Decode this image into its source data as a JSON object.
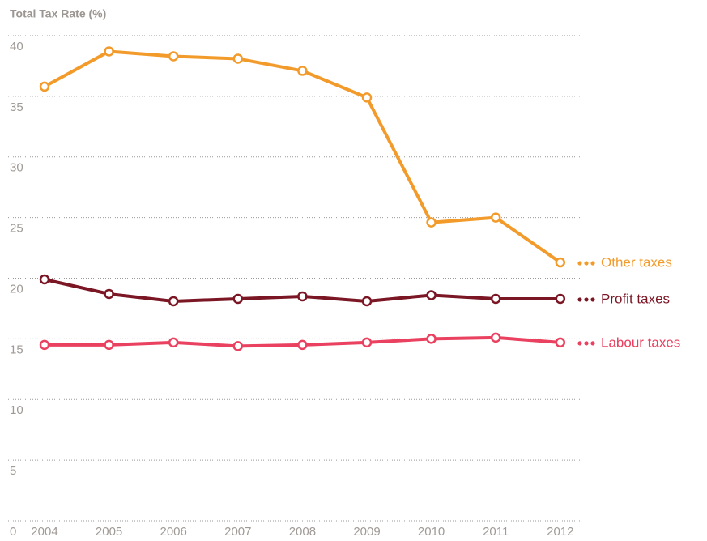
{
  "chart_data": {
    "type": "line",
    "title": "Total Tax Rate (%)",
    "categories": [
      "2004",
      "2005",
      "2006",
      "2007",
      "2008",
      "2009",
      "2010",
      "2011",
      "2012"
    ],
    "series": [
      {
        "name": "Other taxes",
        "color": "#f29b2b",
        "values": [
          35.8,
          38.7,
          38.3,
          38.1,
          37.1,
          34.9,
          24.6,
          25.0,
          21.3
        ]
      },
      {
        "name": "Profit taxes",
        "color": "#7b1624",
        "values": [
          19.9,
          18.7,
          18.1,
          18.3,
          18.5,
          18.1,
          18.6,
          18.3,
          18.3
        ]
      },
      {
        "name": "Labour taxes",
        "color": "#e9415f",
        "values": [
          14.5,
          14.5,
          14.7,
          14.4,
          14.5,
          14.7,
          15.0,
          15.1,
          14.7
        ]
      }
    ],
    "ylim": [
      0,
      40
    ],
    "yticks": [
      0,
      5,
      10,
      15,
      20,
      25,
      30,
      35,
      40
    ],
    "grid": true
  }
}
